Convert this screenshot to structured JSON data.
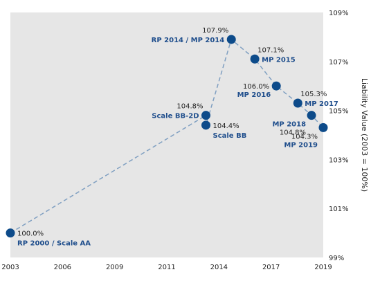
{
  "chart_data": {
    "type": "scatter",
    "ylabel": "Liability Value (2003 = 100%)",
    "xlim": [
      2003,
      2019
    ],
    "ylim": [
      99,
      109
    ],
    "x_ticks": [
      "2003",
      "2006",
      "2009",
      "2011",
      "2014",
      "2017",
      "2019"
    ],
    "y_ticks": [
      "109%",
      "107%",
      "105%",
      "103%",
      "101%",
      "99%"
    ],
    "grid": false,
    "colors": {
      "plot_bg": "#e6e6e6",
      "marker": "#0d4b8a",
      "line": "#7f9fc1",
      "label": "#1f4e8c"
    },
    "points": [
      {
        "name": "RP 2000 / Scale AA",
        "x": 2003.0,
        "y": 100.0,
        "value_label": "100.0%",
        "name_pos": "below-right",
        "value_pos": "right"
      },
      {
        "name": "Scale BB-2D",
        "x": 2013.0,
        "y": 104.8,
        "value_label": "104.8%",
        "name_pos": "left",
        "value_pos": "above-left"
      },
      {
        "name": "Scale BB",
        "x": 2013.0,
        "y": 104.4,
        "value_label": "104.4%",
        "name_pos": "below-right",
        "value_pos": "right"
      },
      {
        "name": "RP 2014 / MP 2014",
        "x": 2014.3,
        "y": 107.9,
        "value_label": "107.9%",
        "name_pos": "left",
        "value_pos": "above-left"
      },
      {
        "name": "MP 2015",
        "x": 2015.5,
        "y": 107.1,
        "value_label": "107.1%",
        "name_pos": "right",
        "value_pos": "above-right"
      },
      {
        "name": "MP 2016",
        "x": 2016.6,
        "y": 106.0,
        "value_label": "106.0%",
        "name_pos": "below-left",
        "value_pos": "left"
      },
      {
        "name": "MP 2017",
        "x": 2017.7,
        "y": 105.3,
        "value_label": "105.3%",
        "name_pos": "right",
        "value_pos": "above-right"
      },
      {
        "name": "MP 2018",
        "x": 2018.4,
        "y": 104.8,
        "value_label": "104.8%",
        "name_pos": "below-left",
        "value_pos": "below-left-2"
      },
      {
        "name": "MP 2019",
        "x": 2019.0,
        "y": 104.3,
        "value_label": "104.3%",
        "name_pos": "below-left-2",
        "value_pos": "below-left"
      }
    ]
  }
}
